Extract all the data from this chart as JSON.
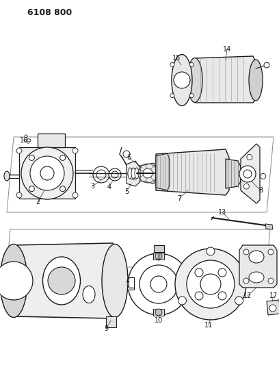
{
  "title": "6108 800",
  "bg": "#ffffff",
  "lc": "#1a1a1a",
  "fig_w": 4.08,
  "fig_h": 5.33,
  "dpi": 100
}
